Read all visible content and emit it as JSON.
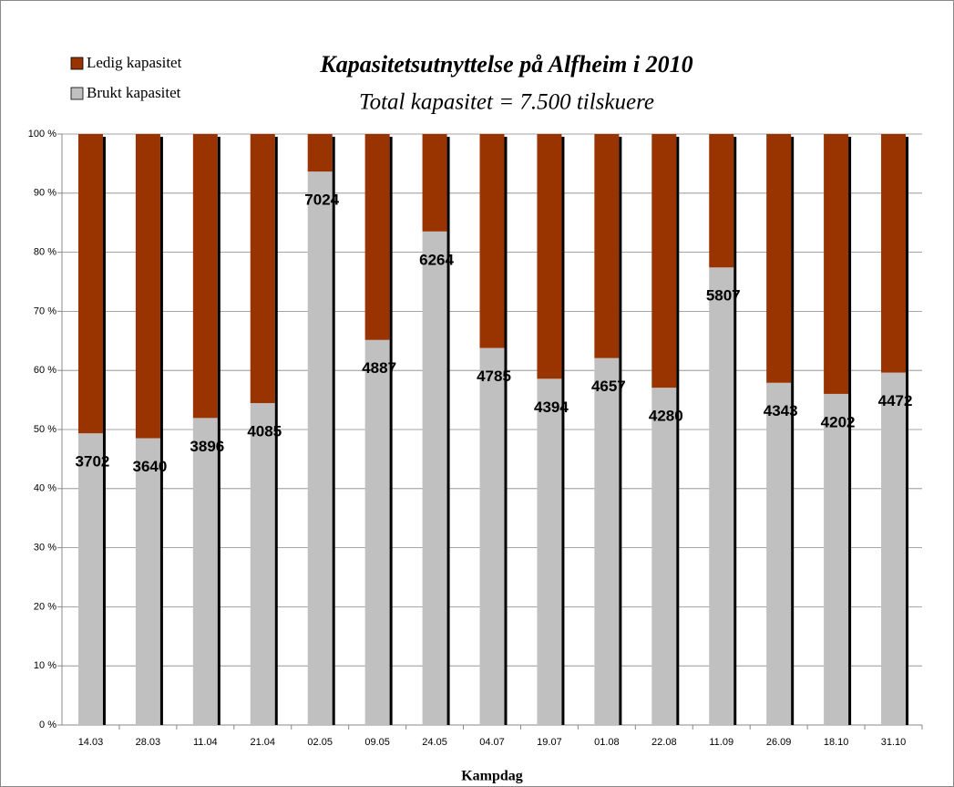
{
  "chart_data": {
    "type": "stacked_bar",
    "title": "Kapasitetsutnyttelse på Alfheim i 2010",
    "subtitle": "Total kapasitet = 7.500 tilskuere",
    "x_label": "Kampdag",
    "categories": [
      "14.03",
      "28.03",
      "11.04",
      "21.04",
      "02.05",
      "09.05",
      "24.05",
      "04.07",
      "19.07",
      "01.08",
      "22.08",
      "11.09",
      "26.09",
      "18.10",
      "31.10"
    ],
    "series": [
      {
        "name": "Brukt kapasitet",
        "color": "#c0c0c0",
        "values": [
          49.36,
          48.53,
          51.95,
          54.47,
          93.65,
          65.16,
          83.52,
          63.8,
          58.59,
          62.09,
          57.07,
          77.43,
          57.91,
          56.03,
          59.63
        ],
        "value_labels": [
          "3702",
          "3640",
          "3896",
          "4085",
          "7024",
          "4887",
          "6264",
          "4785",
          "4394",
          "4657",
          "4280",
          "5807",
          "4343",
          "4202",
          "4472"
        ]
      },
      {
        "name": "Ledig kapasitet",
        "color": "#993300",
        "values": [
          50.64,
          51.47,
          48.05,
          45.53,
          6.35,
          34.84,
          16.48,
          36.2,
          41.41,
          37.91,
          42.93,
          22.57,
          42.09,
          43.97,
          40.37
        ]
      }
    ],
    "ylim": [
      0,
      100
    ],
    "yticks": [
      {
        "value": 0,
        "label": "0 %"
      },
      {
        "value": 10,
        "label": "10 %"
      },
      {
        "value": 20,
        "label": "20 %"
      },
      {
        "value": 30,
        "label": "30 %"
      },
      {
        "value": 40,
        "label": "40 %"
      },
      {
        "value": 50,
        "label": "50 %"
      },
      {
        "value": 60,
        "label": "60 %"
      },
      {
        "value": 70,
        "label": "70 %"
      },
      {
        "value": 80,
        "label": "80 %"
      },
      {
        "value": 90,
        "label": "90 %"
      },
      {
        "value": 100,
        "label": "100 %"
      }
    ],
    "grid": true
  }
}
